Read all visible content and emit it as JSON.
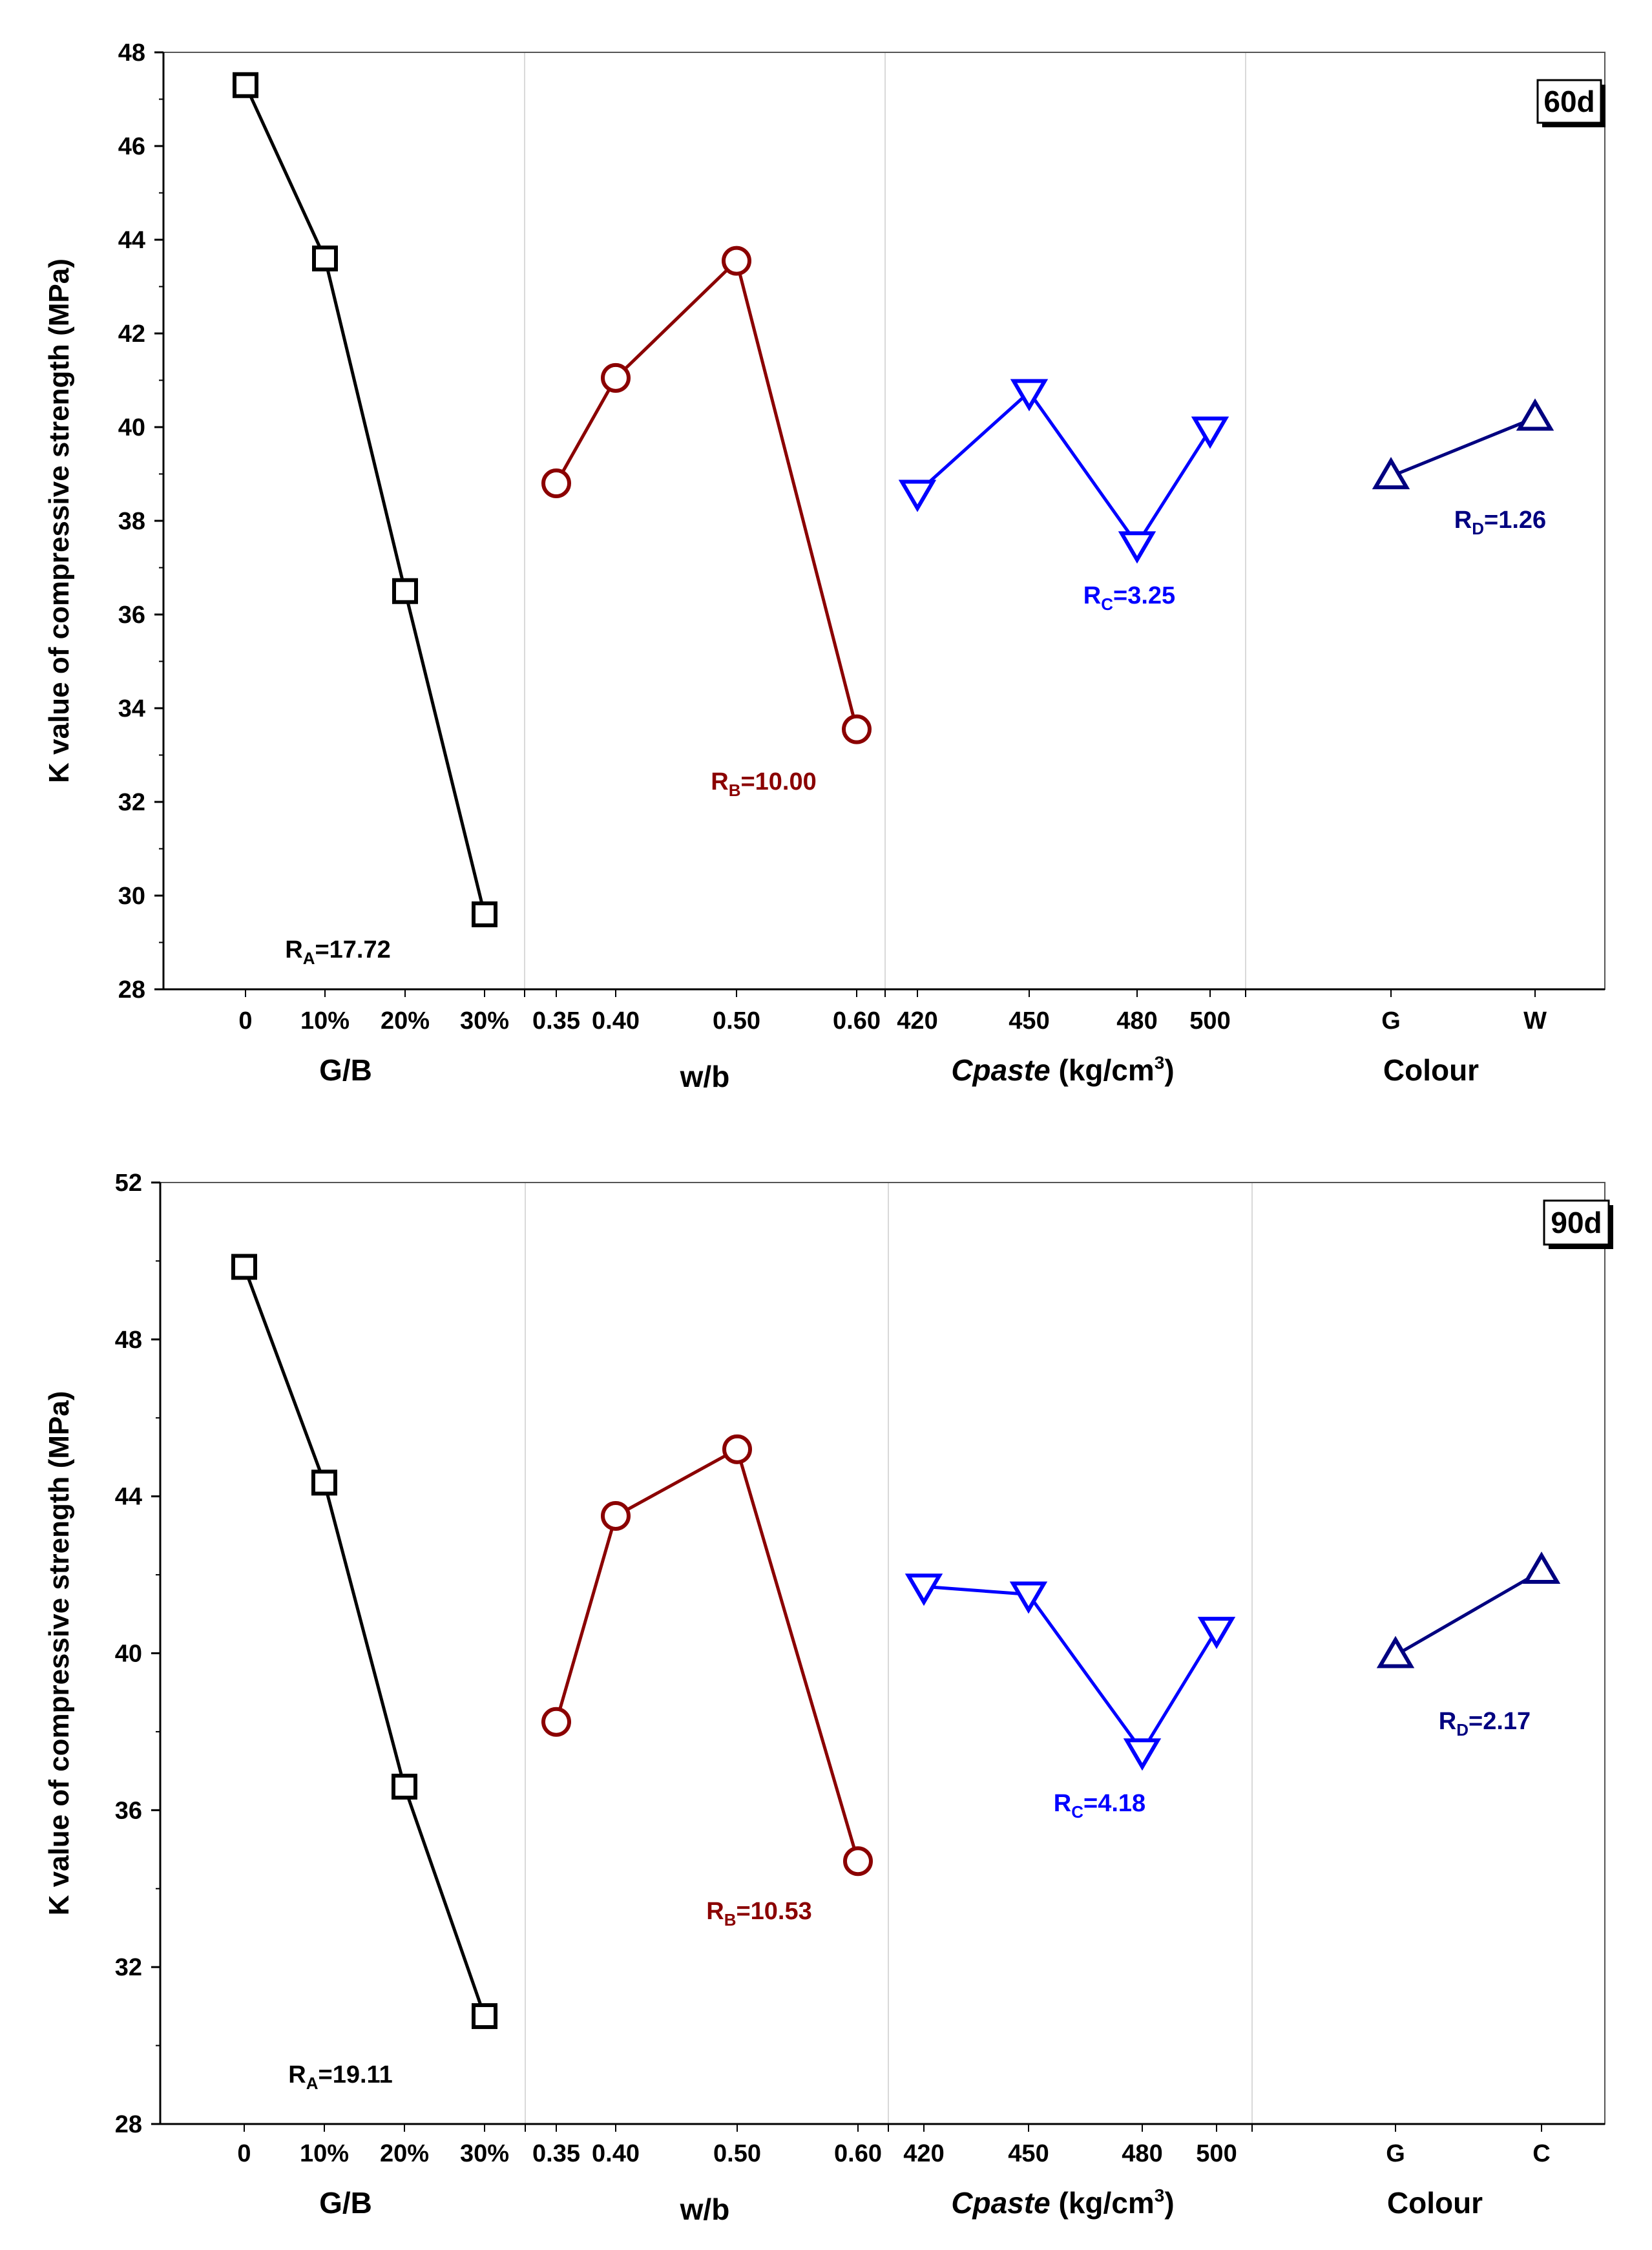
{
  "chart_data": [
    {
      "type": "line",
      "panel_tag": "60d",
      "ylabel": "K value of compressive strength (MPa)",
      "ylim": [
        28,
        48
      ],
      "yticks": [
        28,
        30,
        32,
        34,
        36,
        38,
        40,
        42,
        44,
        46,
        48
      ],
      "groups": [
        {
          "label_main": "G/B",
          "label_suffix": "",
          "color": "#000000",
          "marker": "square",
          "categories": [
            "0",
            "10%",
            "20%",
            "30%"
          ],
          "values": [
            47.3,
            43.6,
            36.5,
            29.6
          ],
          "range_label": {
            "name": "R",
            "sub": "A",
            "value": "=17.72"
          }
        },
        {
          "label_main": "w/b",
          "label_suffix": "",
          "color": "#8b0000",
          "marker": "circle",
          "categories": [
            "0.35",
            "0.40",
            "0.50",
            "0.60"
          ],
          "values": [
            38.8,
            41.05,
            43.55,
            33.55
          ],
          "range_label": {
            "name": "R",
            "sub": "B",
            "value": "=10.00"
          }
        },
        {
          "label_main": "Cpaste",
          "label_suffix": " (kg/cm³)",
          "color": "#0000ff",
          "marker": "triangle-down",
          "categories": [
            "420",
            "450",
            "480",
            "500"
          ],
          "values": [
            38.6,
            40.75,
            37.5,
            39.95
          ],
          "range_label": {
            "name": "R",
            "sub": "C",
            "value": "=3.25"
          }
        },
        {
          "label_main": "Colour",
          "label_suffix": "",
          "color": "#000080",
          "marker": "triangle-up",
          "categories": [
            "G",
            "W"
          ],
          "values": [
            38.95,
            40.2
          ],
          "range_label": {
            "name": "R",
            "sub": "D",
            "value": "=1.26"
          }
        }
      ]
    },
    {
      "type": "line",
      "panel_tag": "90d",
      "ylabel": "K value of compressive strength (MPa)",
      "ylim": [
        28,
        52
      ],
      "yticks": [
        28,
        32,
        36,
        40,
        44,
        48,
        52
      ],
      "groups": [
        {
          "label_main": "G/B",
          "label_suffix": "",
          "color": "#000000",
          "marker": "square",
          "categories": [
            "0",
            "10%",
            "20%",
            "30%"
          ],
          "values": [
            49.85,
            44.35,
            36.6,
            30.75
          ],
          "range_label": {
            "name": "R",
            "sub": "A",
            "value": "=19.11"
          }
        },
        {
          "label_main": "w/b",
          "label_suffix": "",
          "color": "#8b0000",
          "marker": "circle",
          "categories": [
            "0.35",
            "0.40",
            "0.50",
            "0.60"
          ],
          "values": [
            38.25,
            43.5,
            45.2,
            34.7
          ],
          "range_label": {
            "name": "R",
            "sub": "B",
            "value": "=10.53"
          }
        },
        {
          "label_main": "Cpaste",
          "label_suffix": " (kg/cm³)",
          "color": "#0000ff",
          "marker": "triangle-down",
          "categories": [
            "420",
            "450",
            "480",
            "500"
          ],
          "values": [
            41.7,
            41.5,
            37.5,
            40.6
          ],
          "range_label": {
            "name": "R",
            "sub": "C",
            "value": "=4.18"
          }
        },
        {
          "label_main": "Colour",
          "label_suffix": "",
          "color": "#000080",
          "marker": "triangle-up",
          "categories": [
            "G",
            "C"
          ],
          "values": [
            39.95,
            42.1
          ],
          "range_label": {
            "name": "R",
            "sub": "D",
            "value": "=2.17"
          }
        }
      ]
    }
  ]
}
